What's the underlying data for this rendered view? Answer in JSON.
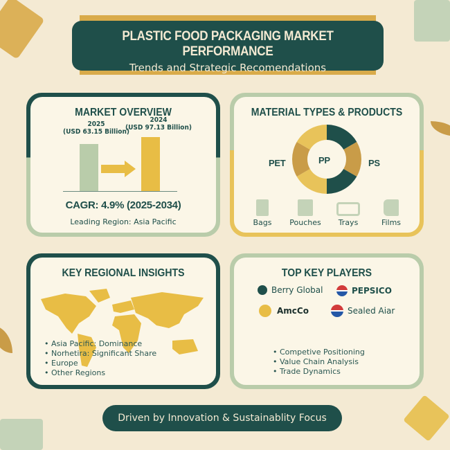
{
  "header": {
    "title": "PLASTIC FOOD PACKAGING MARKET PERFORMANCE",
    "subtitle": "Trends and Strategic Recomendations"
  },
  "market_overview": {
    "title": "MARKET OVERVIEW",
    "bars": [
      {
        "year": "2025",
        "value_label": "(USD 63.15 Billion)",
        "value": 63.15,
        "color": "#b9ccaa"
      },
      {
        "year": "2024",
        "value_label": "(USD 97.13 Billion)",
        "value": 97.13,
        "color": "#e8bd45"
      }
    ],
    "cagr": "CAGR: 4.9% (2025-2034)",
    "leading_region": "Leading Region: Asia Pacific"
  },
  "materials": {
    "title": "MATERIAL TYPES & PRODUCTS",
    "labels": {
      "left": "PET",
      "center": "PP",
      "right": "PS"
    },
    "donut_colors": [
      "#1f4f4a",
      "#c99c48",
      "#1f4f4a",
      "#e8c35a",
      "#c99c48",
      "#e8c35a"
    ],
    "products": [
      {
        "label": "Bags",
        "icon": "bag-icon"
      },
      {
        "label": "Pouches",
        "icon": "pouch-icon"
      },
      {
        "label": "Trays",
        "icon": "tray-icon"
      },
      {
        "label": "Films",
        "icon": "film-roll-icon"
      }
    ]
  },
  "regional": {
    "title": "KEY REGIONAL INSIGHTS",
    "items": [
      "Asia Pacific: Dominance",
      "Norhetira: Significant Share",
      "Europe",
      "Other Regions"
    ]
  },
  "players": {
    "title": "TOP KEY PLAYERS",
    "companies": [
      "Berry Global",
      "PEPSICO",
      "AmcCo",
      "Sealed Aiar"
    ],
    "items": [
      "Competive Positioning",
      "Value Chain Analysis",
      "Trade Dynamics"
    ]
  },
  "footer": {
    "text": "Driven by Innovation & Sustainablity Focus"
  },
  "colors": {
    "teal": "#1f4f4a",
    "gold": "#e8bd45",
    "sage": "#b9ccaa",
    "background": "#f4ead3"
  }
}
